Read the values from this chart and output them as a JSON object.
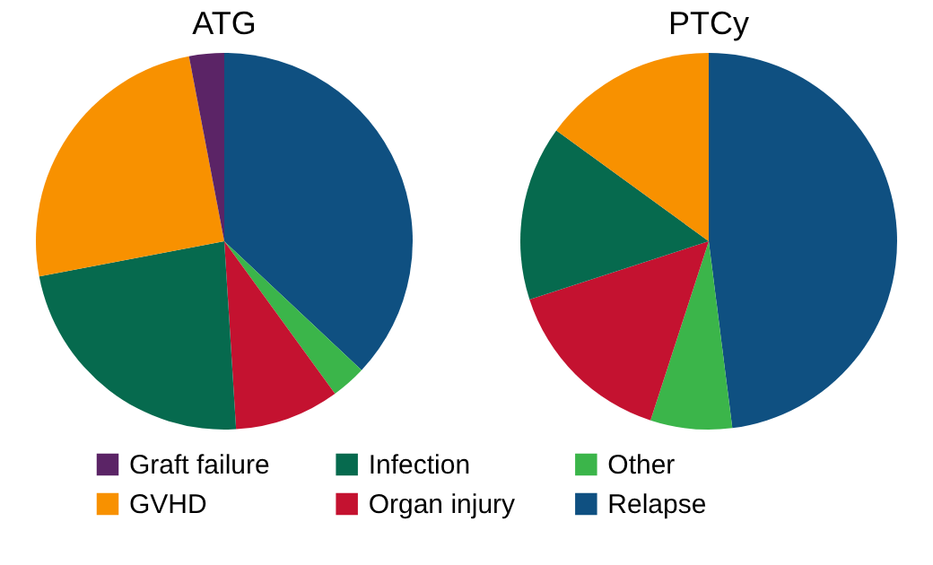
{
  "chart_data": [
    {
      "type": "pie",
      "title": "ATG",
      "categories": [
        "Relapse",
        "Other",
        "Organ injury",
        "Infection",
        "GVHD",
        "Graft failure"
      ],
      "values": [
        37,
        3,
        9,
        23,
        25,
        3
      ],
      "colors": [
        "#0f5081",
        "#3bb54a",
        "#c41230",
        "#066a4e",
        "#f89100",
        "#5b2466"
      ],
      "legend": "bottom"
    },
    {
      "type": "pie",
      "title": "PTCy",
      "categories": [
        null,
        null,
        null,
        null,
        null
      ],
      "values": [
        48,
        7,
        15,
        15,
        15
      ],
      "colors": [
        "#0f5081",
        "#3bb54a",
        "#c41230",
        "#066a4e",
        "#f89100"
      ]
    }
  ]
}
